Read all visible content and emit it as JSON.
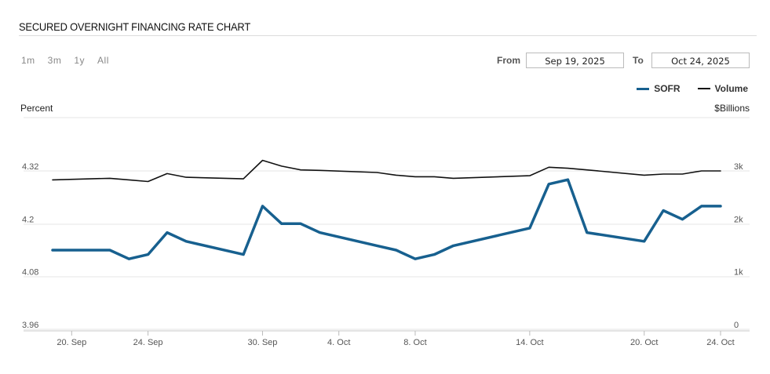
{
  "header": {
    "title": "SECURED OVERNIGHT FINANCING RATE CHART"
  },
  "controls": {
    "ranges": [
      "1m",
      "3m",
      "1y",
      "All"
    ],
    "from_label": "From",
    "from_value": "Sep 19, 2025",
    "to_label": "To",
    "to_value": "Oct 24, 2025"
  },
  "legend": {
    "sofr_label": "SOFR",
    "volume_label": "Volume"
  },
  "colors": {
    "sofr": "#17608f",
    "volume": "#111111",
    "grid": "#e6e6e6"
  },
  "chart_data": {
    "type": "line",
    "ylabel_left": "Percent",
    "ylabel_right": "$Billions",
    "y_left_ticks": [
      "3.96",
      "4.08",
      "4.2",
      "4.32"
    ],
    "y_left_range": [
      3.96,
      4.32
    ],
    "y_right_ticks": [
      "0",
      "1k",
      "2k",
      "3k"
    ],
    "y_right_range": [
      0,
      3000
    ],
    "x_tick_labels": [
      {
        "label": "20. Sep",
        "date": "2025-09-20"
      },
      {
        "label": "24. Sep",
        "date": "2025-09-24"
      },
      {
        "label": "30. Sep",
        "date": "2025-09-30"
      },
      {
        "label": "4. Oct",
        "date": "2025-10-04"
      },
      {
        "label": "8. Oct",
        "date": "2025-10-08"
      },
      {
        "label": "14. Oct",
        "date": "2025-10-14"
      },
      {
        "label": "20. Oct",
        "date": "2025-10-20"
      },
      {
        "label": "24. Oct",
        "date": "2025-10-24"
      }
    ],
    "x_range": [
      "2025-09-19",
      "2025-10-24"
    ],
    "grid": true,
    "legend_position": "top-right",
    "series": [
      {
        "name": "SOFR",
        "axis": "left",
        "points": [
          {
            "date": "2025-09-19",
            "value": 4.14
          },
          {
            "date": "2025-09-22",
            "value": 4.14
          },
          {
            "date": "2025-09-23",
            "value": 4.12
          },
          {
            "date": "2025-09-24",
            "value": 4.13
          },
          {
            "date": "2025-09-25",
            "value": 4.18
          },
          {
            "date": "2025-09-26",
            "value": 4.16
          },
          {
            "date": "2025-09-29",
            "value": 4.13
          },
          {
            "date": "2025-09-30",
            "value": 4.24
          },
          {
            "date": "2025-10-01",
            "value": 4.2
          },
          {
            "date": "2025-10-02",
            "value": 4.2
          },
          {
            "date": "2025-10-03",
            "value": 4.18
          },
          {
            "date": "2025-10-06",
            "value": 4.15
          },
          {
            "date": "2025-10-07",
            "value": 4.14
          },
          {
            "date": "2025-10-08",
            "value": 4.12
          },
          {
            "date": "2025-10-09",
            "value": 4.13
          },
          {
            "date": "2025-10-10",
            "value": 4.15
          },
          {
            "date": "2025-10-14",
            "value": 4.19
          },
          {
            "date": "2025-10-15",
            "value": 4.29
          },
          {
            "date": "2025-10-16",
            "value": 4.3
          },
          {
            "date": "2025-10-17",
            "value": 4.18
          },
          {
            "date": "2025-10-20",
            "value": 4.16
          },
          {
            "date": "2025-10-21",
            "value": 4.23
          },
          {
            "date": "2025-10-22",
            "value": 4.21
          },
          {
            "date": "2025-10-23",
            "value": 4.24
          },
          {
            "date": "2025-10-24",
            "value": 4.24
          }
        ]
      },
      {
        "name": "Volume",
        "axis": "right",
        "points": [
          {
            "date": "2025-09-19",
            "value": 2830
          },
          {
            "date": "2025-09-22",
            "value": 2860
          },
          {
            "date": "2025-09-23",
            "value": 2830
          },
          {
            "date": "2025-09-24",
            "value": 2800
          },
          {
            "date": "2025-09-25",
            "value": 2950
          },
          {
            "date": "2025-09-26",
            "value": 2880
          },
          {
            "date": "2025-09-29",
            "value": 2850
          },
          {
            "date": "2025-09-30",
            "value": 3200
          },
          {
            "date": "2025-10-01",
            "value": 3090
          },
          {
            "date": "2025-10-02",
            "value": 3020
          },
          {
            "date": "2025-10-03",
            "value": 3010
          },
          {
            "date": "2025-10-06",
            "value": 2970
          },
          {
            "date": "2025-10-07",
            "value": 2920
          },
          {
            "date": "2025-10-08",
            "value": 2890
          },
          {
            "date": "2025-10-09",
            "value": 2890
          },
          {
            "date": "2025-10-10",
            "value": 2860
          },
          {
            "date": "2025-10-14",
            "value": 2910
          },
          {
            "date": "2025-10-15",
            "value": 3070
          },
          {
            "date": "2025-10-16",
            "value": 3050
          },
          {
            "date": "2025-10-17",
            "value": 3020
          },
          {
            "date": "2025-10-20",
            "value": 2920
          },
          {
            "date": "2025-10-21",
            "value": 2940
          },
          {
            "date": "2025-10-22",
            "value": 2940
          },
          {
            "date": "2025-10-23",
            "value": 3000
          },
          {
            "date": "2025-10-24",
            "value": 3000
          }
        ]
      }
    ]
  }
}
